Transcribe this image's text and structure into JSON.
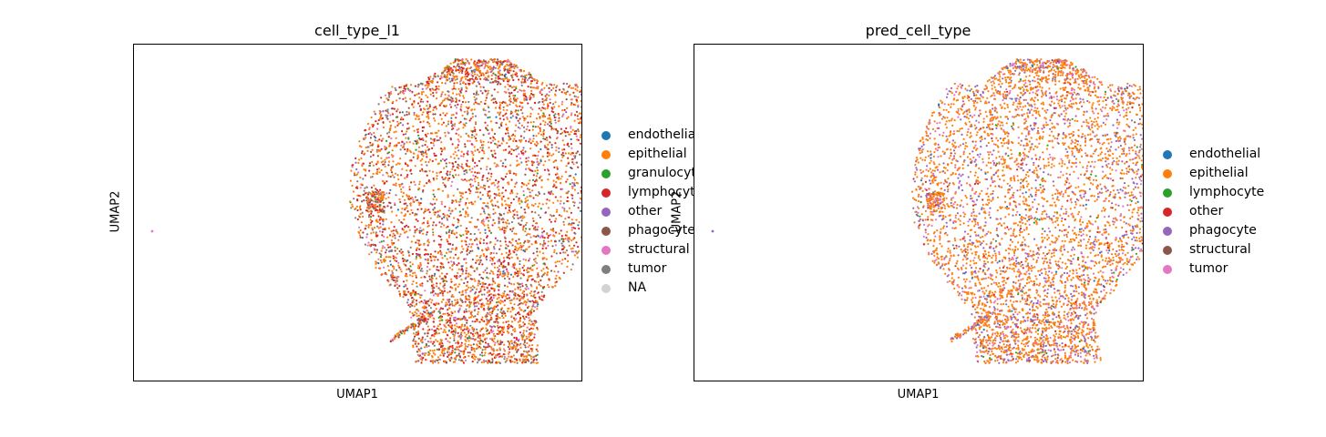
{
  "chart_data": [
    {
      "type": "scatter",
      "title": "cell_type_l1",
      "xlabel": "UMAP1",
      "ylabel": "UMAP2",
      "grid": false,
      "legend_placement": "right outside",
      "legend": [
        {
          "label": "endothelial",
          "color": "#1f77b4"
        },
        {
          "label": "epithelial",
          "color": "#ff7f0e"
        },
        {
          "label": "granulocyte",
          "color": "#2ca02c"
        },
        {
          "label": "lymphocyte",
          "color": "#d62728"
        },
        {
          "label": "other",
          "color": "#9467bd"
        },
        {
          "label": "phagocyte",
          "color": "#8c564b"
        },
        {
          "label": "structural",
          "color": "#e377c2"
        },
        {
          "label": "tumor",
          "color": "#7f7f7f"
        },
        {
          "label": "NA",
          "color": "#d3d3d3"
        }
      ],
      "legend_visible_text": [
        "endothelia",
        "epithelial",
        "granulocyt",
        "lymphocyt",
        "other",
        "phagocyte",
        "structural",
        "tumor",
        "NA"
      ],
      "mix": [
        0.02,
        0.45,
        0.02,
        0.27,
        0.03,
        0.05,
        0.06,
        0.1,
        0.0
      ]
    },
    {
      "type": "scatter",
      "title": "pred_cell_type",
      "xlabel": "UMAP1",
      "ylabel": "UMAP2",
      "grid": false,
      "legend_placement": "right outside",
      "legend": [
        {
          "label": "endothelial",
          "color": "#1f77b4"
        },
        {
          "label": "epithelial",
          "color": "#ff7f0e"
        },
        {
          "label": "lymphocyte",
          "color": "#2ca02c"
        },
        {
          "label": "other",
          "color": "#d62728"
        },
        {
          "label": "phagocyte",
          "color": "#9467bd"
        },
        {
          "label": "structural",
          "color": "#8c564b"
        },
        {
          "label": "tumor",
          "color": "#e377c2"
        }
      ],
      "legend_visible_text": [
        "endothelial",
        "epithelial",
        "lymphocyte",
        "other",
        "phagocyte",
        "structural",
        "tumor"
      ],
      "mix": [
        0.01,
        0.66,
        0.01,
        0.02,
        0.18,
        0.01,
        0.11
      ]
    }
  ]
}
